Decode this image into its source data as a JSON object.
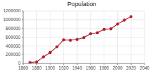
{
  "chart_data": {
    "type": "line",
    "title": "Population",
    "x": [
      1870,
      1880,
      1890,
      1900,
      1910,
      1920,
      1930,
      1940,
      1950,
      1960,
      1970,
      1980,
      1990,
      2000,
      2010,
      2020
    ],
    "series": [
      {
        "name": "Population",
        "color": "#b3202e",
        "marker": "circle",
        "values": [
          20000,
          35000,
          150000,
          250000,
          380000,
          540000,
          530000,
          550000,
          590000,
          680000,
          700000,
          780000,
          790000,
          900000,
          990000,
          1070000
        ]
      }
    ],
    "xlim": [
      1860,
      2040
    ],
    "xticks": [
      1860,
      1880,
      1900,
      1920,
      1940,
      1960,
      1980,
      2000,
      2020,
      2040
    ],
    "ylim": [
      0,
      1200000
    ],
    "yticks": [
      0,
      200000,
      400000,
      600000,
      800000,
      1000000,
      1200000
    ],
    "grid": true
  }
}
